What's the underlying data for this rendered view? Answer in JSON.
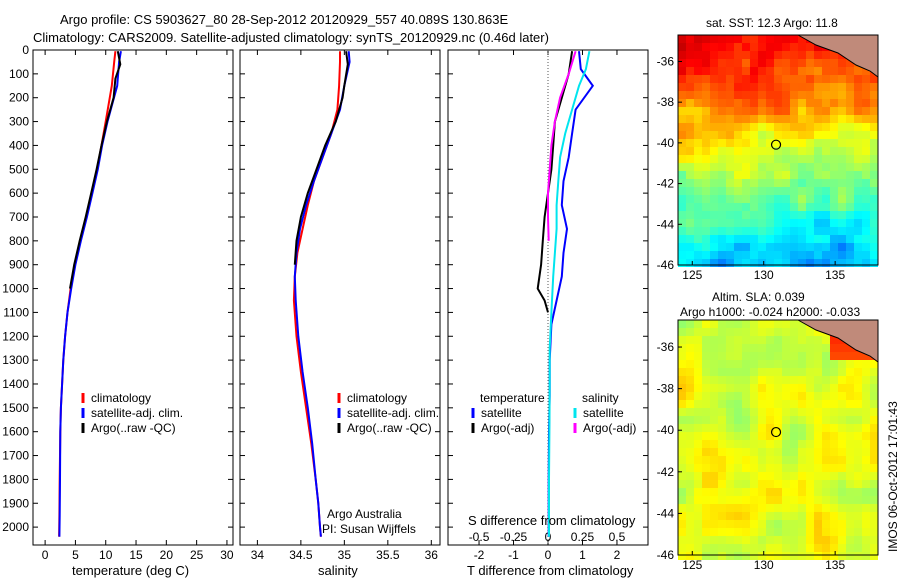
{
  "header": {
    "line1": "Argo profile: CS 5903627_80 28-Sep-2012 20120929_557 40.089S 130.863E",
    "line2": "Climatology: CARS2009. Satellite-adjusted climatology: synTS_20120929.nc (0.46d later)"
  },
  "footer": {
    "institute": "Argo Australia",
    "pi": "PI: Susan Wijffels"
  },
  "watermark": "IMOS 06-Oct-2012 17:01:43",
  "colors": {
    "clim": "#ff0000",
    "sat": "#0000ff",
    "argo": "#000000",
    "sal_sat": "#00e5ee",
    "sal_argo": "#ff00ff"
  },
  "chart_data": [
    {
      "type": "line",
      "xlabel": "temperature (deg C)",
      "xlim": [
        -2,
        31
      ],
      "xticks": [
        0,
        5,
        10,
        15,
        20,
        25,
        30
      ],
      "ylim": [
        2075,
        0
      ],
      "yticks": [
        0,
        100,
        200,
        300,
        400,
        500,
        600,
        700,
        800,
        900,
        1000,
        1100,
        1200,
        1300,
        1400,
        1500,
        1600,
        1700,
        1800,
        1900,
        2000
      ],
      "legend": [
        "climatology",
        "satellite-adj. clim.",
        "Argo(..raw -QC)"
      ],
      "series": [
        {
          "name": "climatology",
          "color": "#ff0000",
          "x": [
            11.6,
            11.4,
            11.0,
            10.0,
            9.3,
            8.6,
            7.7,
            6.8,
            5.8,
            4.9,
            4.2,
            3.7,
            3.3,
            3.0,
            2.8,
            2.6,
            2.5,
            2.4,
            2.35,
            2.3
          ],
          "y": [
            5,
            50,
            150,
            300,
            400,
            500,
            600,
            700,
            800,
            900,
            1000,
            1100,
            1200,
            1300,
            1400,
            1500,
            1600,
            1800,
            1950,
            2040
          ]
        },
        {
          "name": "satellite-adj. clim.",
          "color": "#0000ff",
          "x": [
            12.5,
            12.2,
            11.9,
            10.3,
            9.4,
            8.7,
            7.8,
            6.9,
            5.9,
            5.0,
            4.3,
            3.7,
            3.3,
            3.0,
            2.8,
            2.6,
            2.5,
            2.45,
            2.4,
            2.35
          ],
          "y": [
            5,
            50,
            150,
            300,
            400,
            500,
            600,
            700,
            800,
            900,
            1000,
            1100,
            1200,
            1300,
            1400,
            1500,
            1600,
            1800,
            1950,
            2040
          ]
        },
        {
          "name": "Argo(..raw -QC)",
          "color": "#000000",
          "x": [
            12.0,
            12.4,
            11.6,
            11.3,
            10.2,
            9.3,
            8.5,
            7.6,
            6.7,
            5.7,
            4.8,
            4.1
          ],
          "y": [
            5,
            60,
            120,
            200,
            300,
            400,
            500,
            600,
            700,
            800,
            900,
            1000
          ]
        }
      ]
    },
    {
      "type": "line",
      "xlabel": "salinity",
      "xlim": [
        33.8,
        36.1
      ],
      "xticks": [
        34,
        34.5,
        35,
        35.5,
        36
      ],
      "ylim": [
        2075,
        0
      ],
      "legend": [
        "climatology",
        "satellite-adj. clim.",
        "Argo(..raw -QC)"
      ],
      "series": [
        {
          "name": "climatology",
          "color": "#ff0000",
          "x": [
            34.95,
            34.95,
            34.94,
            34.92,
            34.85,
            34.75,
            34.65,
            34.58,
            34.52,
            34.46,
            34.43,
            34.42,
            34.45,
            34.5,
            34.56,
            34.62,
            34.67,
            34.7,
            34.72,
            34.73
          ],
          "y": [
            5,
            50,
            150,
            250,
            350,
            450,
            550,
            650,
            750,
            850,
            950,
            1050,
            1200,
            1350,
            1500,
            1650,
            1800,
            1900,
            2000,
            2040
          ]
        },
        {
          "name": "satellite-adj. clim.",
          "color": "#0000ff",
          "x": [
            35.05,
            35.06,
            35.0,
            34.95,
            34.85,
            34.75,
            34.65,
            34.56,
            34.49,
            34.45,
            34.43,
            34.44,
            34.47,
            34.52,
            34.58,
            34.63,
            34.67,
            34.7,
            34.72,
            34.73
          ],
          "y": [
            5,
            50,
            150,
            250,
            350,
            450,
            550,
            650,
            750,
            850,
            950,
            1050,
            1200,
            1350,
            1500,
            1650,
            1800,
            1900,
            2000,
            2040
          ]
        },
        {
          "name": "Argo(..raw -QC)",
          "color": "#000000",
          "x": [
            35.02,
            35.04,
            35.0,
            34.98,
            34.9,
            34.78,
            34.68,
            34.58,
            34.5,
            34.45,
            34.43
          ],
          "y": [
            5,
            60,
            150,
            200,
            300,
            400,
            500,
            600,
            700,
            800,
            900
          ]
        }
      ]
    },
    {
      "type": "line",
      "xlabel": "T difference from climatology",
      "x2label": "S difference from climatology",
      "xlim": [
        -2.9,
        2.9
      ],
      "xticks": [
        -2,
        -1,
        0,
        1,
        2
      ],
      "x2ticks": [
        -0.5,
        -0.25,
        0,
        0.25,
        0.5
      ],
      "ylim": [
        2075,
        0
      ],
      "legend_titles": [
        "temperature",
        "salinity"
      ],
      "legend": [
        "satellite",
        "Argo(-adj)",
        "satellite",
        "Argo(-adj)"
      ],
      "series": [
        {
          "name": "satellite",
          "color": "#0000ff",
          "x": [
            0.9,
            0.95,
            1.3,
            0.8,
            0.7,
            0.6,
            0.45,
            0.4,
            0.55,
            0.45,
            0.4,
            0.25,
            0.1,
            0.05,
            0.05,
            0.03,
            0.02,
            0.02
          ],
          "y": [
            5,
            80,
            150,
            250,
            350,
            450,
            550,
            650,
            750,
            850,
            950,
            1050,
            1150,
            1300,
            1450,
            1600,
            1800,
            2040
          ]
        },
        {
          "name": "Argo(-adj)",
          "color": "#000000",
          "x": [
            0.7,
            0.6,
            0.4,
            0.2,
            0.15,
            0.1,
            0.0,
            -0.1,
            -0.15,
            -0.2,
            -0.3,
            -0.1,
            0.0
          ],
          "y": [
            5,
            100,
            200,
            300,
            400,
            500,
            600,
            700,
            800,
            900,
            1000,
            1050,
            1100
          ]
        },
        {
          "name": "satellite (salinity)",
          "color": "#00e5ee",
          "x": [
            1.2,
            1.1,
            0.9,
            0.7,
            0.5,
            0.35,
            0.3,
            0.25,
            0.25,
            0.2,
            0.15,
            0.1,
            0.05,
            0.05,
            0.04,
            0.03,
            0.03
          ],
          "y": [
            5,
            80,
            150,
            250,
            350,
            450,
            550,
            650,
            750,
            850,
            950,
            1100,
            1250,
            1400,
            1600,
            1800,
            2040
          ]
        },
        {
          "name": "Argo(-adj) (salinity)",
          "color": "#ff00ff",
          "x": [
            0.8,
            0.6,
            0.35,
            0.2,
            0.1,
            0.05,
            0.0,
            0.0,
            0.02
          ],
          "y": [
            5,
            100,
            200,
            300,
            400,
            500,
            600,
            700,
            800
          ]
        }
      ]
    },
    {
      "type": "heatmap",
      "title": "sat. SST: 12.3 Argo: 11.8",
      "xlim": [
        124,
        138
      ],
      "ylim": [
        -46,
        -34.7
      ],
      "xticks": [
        125,
        130,
        135
      ],
      "yticks": [
        -36,
        -38,
        -40,
        -42,
        -44,
        -46
      ],
      "float": {
        "lon": 130.863,
        "lat": -40.089
      }
    },
    {
      "type": "heatmap",
      "title": "Altim. SLA: 0.039",
      "subtitle": "Argo h1000: -0.024 h2000: -0.033",
      "xlim": [
        124,
        138
      ],
      "ylim": [
        -46,
        -34.7
      ],
      "xticks": [
        125,
        130,
        135
      ],
      "yticks": [
        -36,
        -38,
        -40,
        -42,
        -44,
        -46
      ],
      "float": {
        "lon": 130.863,
        "lat": -40.089
      }
    }
  ]
}
